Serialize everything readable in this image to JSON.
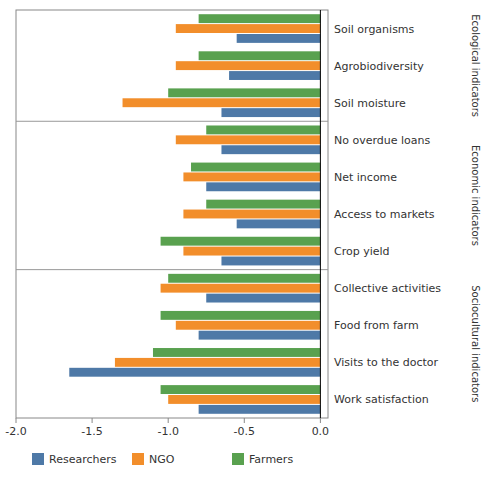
{
  "chart_data": {
    "type": "bar",
    "orientation": "horizontal",
    "categories": [
      "Soil organisms",
      "Agrobiodiversity",
      "Soil moisture",
      "No overdue loans",
      "Net income",
      "Access to markets",
      "Crop yield",
      "Collective activities",
      "Food from farm",
      "Visits to the doctor",
      "Work satisfaction"
    ],
    "series": [
      {
        "name": "Researchers",
        "color": "#4e79a7",
        "values": [
          -0.55,
          -0.6,
          -0.65,
          -0.65,
          -0.75,
          -0.55,
          -0.65,
          -0.75,
          -0.8,
          -1.65,
          -0.8
        ]
      },
      {
        "name": "NGO",
        "color": "#f28e2b",
        "values": [
          -0.95,
          -0.95,
          -1.3,
          -0.95,
          -0.9,
          -0.9,
          -0.9,
          -1.05,
          -0.95,
          -1.35,
          -1.0
        ]
      },
      {
        "name": "Farmers",
        "color": "#59a14f",
        "values": [
          -0.8,
          -0.8,
          -1.0,
          -0.75,
          -0.85,
          -0.75,
          -1.05,
          -1.0,
          -1.05,
          -1.1,
          -1.05
        ]
      }
    ],
    "xlim": [
      -2.0,
      0.05
    ],
    "xticks": [
      {
        "value": -2.0,
        "label": "-2.0"
      },
      -1.5,
      {
        "value": -1.0,
        "label": "-1.0"
      },
      -0.5,
      {
        "value": 0.0,
        "label": "0.0"
      }
    ],
    "annotations": [
      {
        "text": "Ecological indicators",
        "categories": [
          "Soil organisms",
          "Agrobiodiversity",
          "Soil moisture"
        ]
      },
      {
        "text": "Economic indicators",
        "categories": [
          "No overdue loans",
          "Net income",
          "Access to markets",
          "Crop yield"
        ]
      },
      {
        "text": "Sociocultural indicators",
        "categories": [
          "Collective activities",
          "Food from farm",
          "Visits to the doctor",
          "Work satisfaction"
        ]
      }
    ],
    "grid": false,
    "legend": "bottom"
  }
}
